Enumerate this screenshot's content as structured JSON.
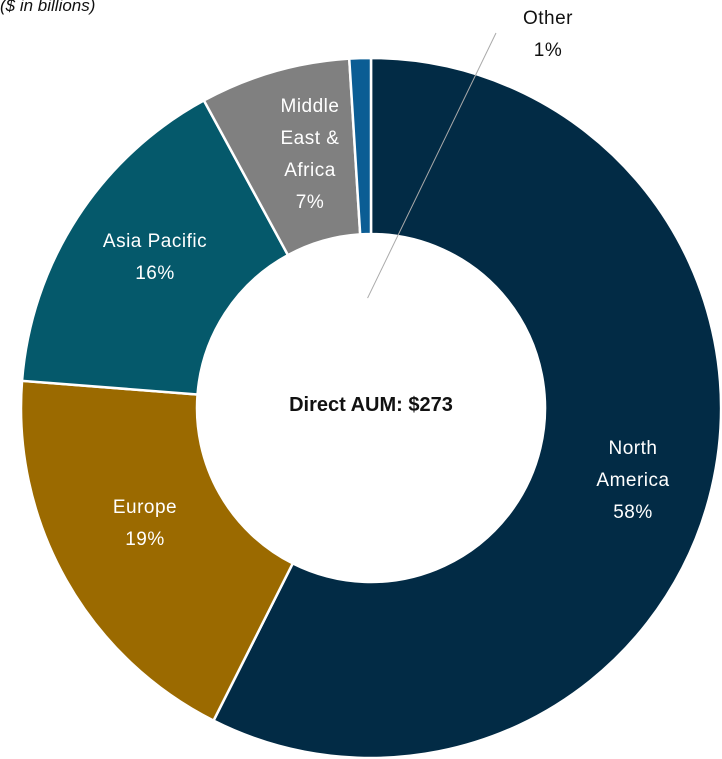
{
  "chart_data": {
    "type": "donut",
    "subtitle": "($ in billions)",
    "center_label": "Direct AUM: $273",
    "categories": [
      "North America",
      "Europe",
      "Asia Pacific",
      "Middle East & Africa",
      "Other"
    ],
    "values": [
      58,
      19,
      16,
      7,
      1
    ],
    "value_labels": [
      "58%",
      "19%",
      "16%",
      "7%",
      "1%"
    ],
    "colors": [
      "#022b45",
      "#9b6a00",
      "#05596b",
      "#808080",
      "#0b5d94"
    ]
  }
}
